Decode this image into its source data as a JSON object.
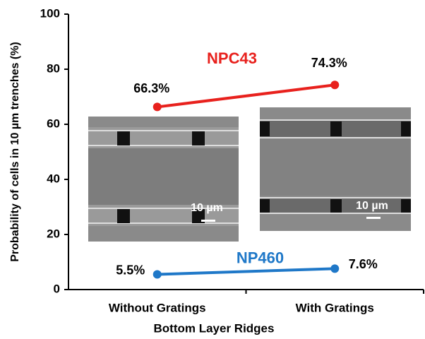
{
  "chart_data": {
    "type": "line",
    "x_label": "Bottom Layer Ridges",
    "y_label": "Probability of cells in 10 µm trenches (%)",
    "categories": [
      "Without Gratings",
      "With Gratings"
    ],
    "series": [
      {
        "name": "NPC43",
        "color": "#e8211d",
        "values": [
          66.3,
          74.3
        ],
        "value_labels": [
          "66.3%",
          "74.3%"
        ]
      },
      {
        "name": "NP460",
        "color": "#1f78c8",
        "values": [
          5.5,
          7.6
        ],
        "value_labels": [
          "5.5%",
          "7.6%"
        ]
      }
    ],
    "ylim": [
      0,
      100
    ],
    "yticks": [
      0,
      20,
      40,
      60,
      80,
      100
    ],
    "grid": false,
    "inset_labels": [
      "10 µm",
      "10 µm"
    ]
  }
}
